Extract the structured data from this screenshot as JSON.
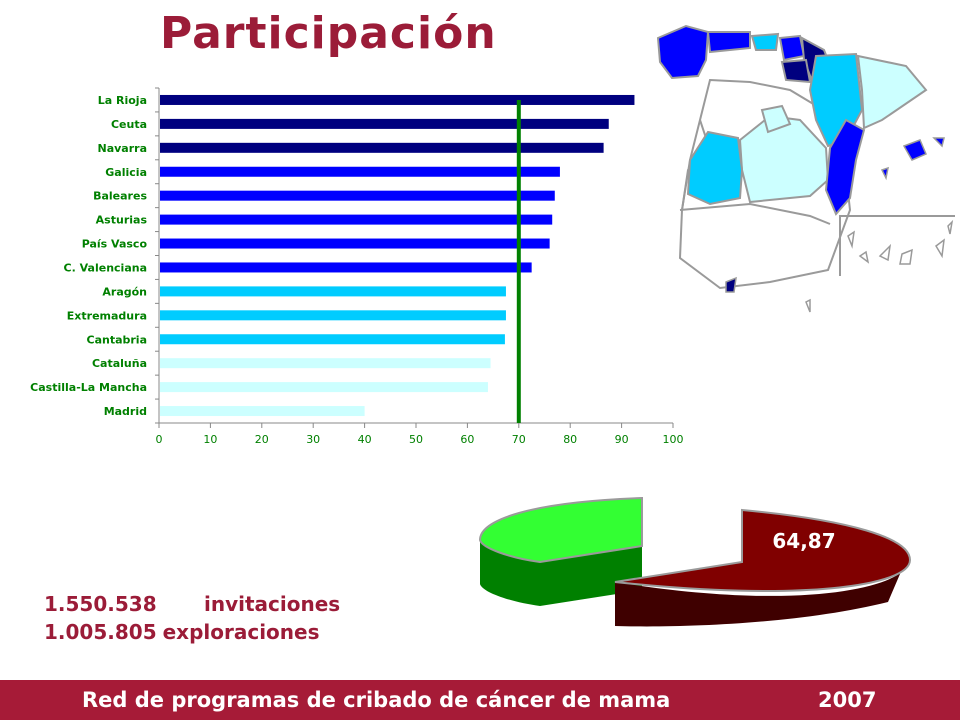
{
  "title": "Participación",
  "chart_data": {
    "type": "bar",
    "orientation": "horizontal",
    "categories": [
      "La Rioja",
      "Ceuta",
      "Navarra",
      "Galicia",
      "Baleares",
      "Asturias",
      "País Vasco",
      "C. Valenciana",
      "Aragón",
      "Extremadura",
      "Cantabria",
      "Cataluña",
      "Castilla-La Mancha",
      "Madrid"
    ],
    "values": [
      92.5,
      87.5,
      86.5,
      78,
      77,
      76.5,
      76,
      72.5,
      67.5,
      67.5,
      67.3,
      64.5,
      64,
      40
    ],
    "colors": [
      "#00007f",
      "#00007f",
      "#00007f",
      "#0000ff",
      "#0000ff",
      "#0000ff",
      "#0000ff",
      "#0000ff",
      "#00ccff",
      "#00ccff",
      "#00ccff",
      "#ccffff",
      "#ccffff",
      "#ccffff"
    ],
    "xlim": [
      0,
      100
    ],
    "xticks": [
      0,
      10,
      20,
      30,
      40,
      50,
      60,
      70,
      80,
      90,
      100
    ],
    "reference_line": 70,
    "reference_color": "#008000",
    "label_color": "#008000",
    "grid": false
  },
  "pie": {
    "type": "pie",
    "values": [
      64.87,
      35.13
    ],
    "label": "64,87",
    "colors": [
      "#800000",
      "#33ff33"
    ]
  },
  "stats": [
    {
      "value": "1.550.538",
      "label": "invitaciones"
    },
    {
      "value": "1.005.805",
      "label": "exploraciones"
    }
  ],
  "footer": {
    "text": "Red de programas de cribado de cáncer de mama",
    "year": "2007"
  },
  "colors": {
    "title": "#9b1c38",
    "footer_bg": "#a61b37"
  }
}
